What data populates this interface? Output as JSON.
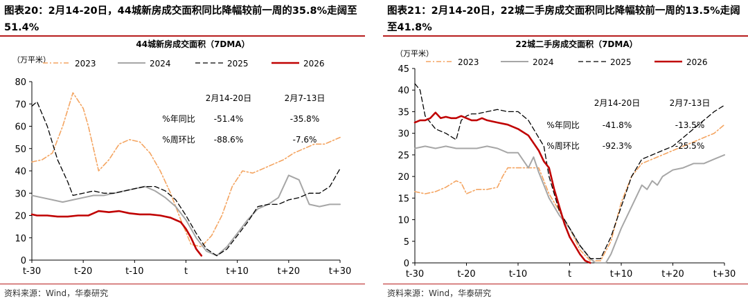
{
  "left": {
    "headline": "图表20：2月14-20日，44城新房成交面积同比降幅较前一周的35.8%走阔至51.4%",
    "source": "资料来源：Wind，华泰研究"
  },
  "right": {
    "headline": "图表21：2月14-20日，22城二手房成交面积同比降幅较前一周的13.5%走阔至41.8%",
    "source": "资料来源：Wind，华泰研究"
  },
  "colors": {
    "c2023": "#f4a460",
    "c2024": "#a6a6a6",
    "c2025": "#000000",
    "c2026": "#c00000",
    "rule": "#b71c1c"
  },
  "chart_data": [
    {
      "type": "line",
      "title": "44城新房成交面积（7DMA）",
      "unit_label": "（万平米）",
      "ylim": [
        0,
        80
      ],
      "yticks": [
        0,
        10,
        20,
        30,
        40,
        50,
        60,
        70,
        80
      ],
      "xlim": [
        -30,
        30
      ],
      "xticks": [
        -30,
        -20,
        -10,
        0,
        10,
        20,
        30
      ],
      "xtick_labels": [
        "t-30",
        "t-20",
        "t-10",
        "t",
        "t+10",
        "t+20",
        "t+30"
      ],
      "legend": [
        "2023",
        "2024",
        "2025",
        "2026"
      ],
      "legend_position": "top",
      "grid": false,
      "series": [
        {
          "name": "2023",
          "x": [
            -30,
            -28,
            -26,
            -24,
            -22,
            -20,
            -19,
            -17,
            -15,
            -13,
            -11,
            -9,
            -7,
            -5,
            -3,
            -1,
            1,
            3,
            5,
            7,
            9,
            11,
            13,
            15,
            17,
            19,
            21,
            23,
            25,
            27,
            29,
            30
          ],
          "y": [
            44,
            45,
            48,
            60,
            75,
            68,
            60,
            40,
            45,
            52,
            54,
            53,
            48,
            40,
            30,
            18,
            7,
            6,
            11,
            20,
            33,
            40,
            39,
            41,
            43,
            45,
            48,
            50,
            52,
            52,
            54,
            55
          ]
        },
        {
          "name": "2024",
          "x": [
            -30,
            -28,
            -26,
            -24,
            -22,
            -20,
            -18,
            -16,
            -14,
            -12,
            -10,
            -8,
            -6,
            -4,
            -2,
            0,
            2,
            4,
            6,
            8,
            10,
            12,
            14,
            16,
            18,
            20,
            22,
            24,
            26,
            28,
            30
          ],
          "y": [
            29,
            28,
            27,
            26,
            27,
            28,
            29,
            29,
            30,
            31,
            32,
            33,
            31,
            28,
            24,
            18,
            10,
            4,
            2,
            6,
            12,
            18,
            23,
            25,
            28,
            38,
            36,
            25,
            24,
            25,
            25
          ]
        },
        {
          "name": "2025",
          "x": [
            -30,
            -29,
            -27,
            -25,
            -23,
            -22,
            -20,
            -18,
            -16,
            -14,
            -12,
            -10,
            -8,
            -6,
            -4,
            -2,
            0,
            2,
            4,
            6,
            8,
            10,
            12,
            14,
            16,
            18,
            20,
            22,
            24,
            26,
            28,
            29,
            30
          ],
          "y": [
            69,
            71,
            60,
            45,
            35,
            29,
            30,
            31,
            30,
            30,
            31,
            32,
            33,
            33,
            31,
            27,
            20,
            12,
            5,
            2,
            5,
            11,
            17,
            24,
            25,
            25,
            27,
            28,
            30,
            30,
            33,
            37,
            41
          ]
        },
        {
          "name": "2026",
          "x": [
            -30,
            -29,
            -27,
            -25,
            -23,
            -21,
            -19,
            -18,
            -17,
            -15,
            -13,
            -11,
            -9,
            -7,
            -5,
            -3,
            -1,
            0,
            1,
            2,
            3
          ],
          "y": [
            20.5,
            20,
            20,
            19.5,
            19.5,
            20,
            20,
            21,
            22,
            21.5,
            22,
            21,
            20.5,
            20.5,
            20,
            19,
            17,
            14,
            10,
            5,
            2
          ]
        }
      ],
      "annotations": {
        "headers": [
          "2月14-20日",
          "2月7-13日"
        ],
        "rows": [
          {
            "label": "%年同比",
            "values": [
              "-51.4%",
              "-35.8%"
            ]
          },
          {
            "label": "%周环比",
            "values": [
              "-88.6%",
              "-7.6%"
            ]
          }
        ]
      }
    },
    {
      "type": "line",
      "title": "22城二手房成交面积（7DMA）",
      "unit_label": "（万平米）",
      "ylim": [
        0,
        45
      ],
      "yticks": [
        0,
        5,
        10,
        15,
        20,
        25,
        30,
        35,
        40,
        45
      ],
      "xlim": [
        -30,
        30
      ],
      "xticks": [
        -30,
        -20,
        -10,
        0,
        10,
        20,
        30
      ],
      "xtick_labels": [
        "t-30",
        "t-20",
        "t-10",
        "t",
        "t+10",
        "t+20",
        "t+30"
      ],
      "legend": [
        "2023",
        "2024",
        "2025",
        "2026"
      ],
      "legend_position": "top",
      "grid": false,
      "series": [
        {
          "name": "2023",
          "x": [
            -30,
            -28,
            -26,
            -24,
            -22,
            -21,
            -20,
            -18,
            -16,
            -14,
            -13,
            -12,
            -10,
            -8,
            -6,
            -5,
            -4,
            -2,
            0,
            2,
            4,
            6,
            8,
            10,
            12,
            14,
            16,
            18,
            20,
            22,
            24,
            26,
            28,
            30
          ],
          "y": [
            16.5,
            16,
            16.5,
            17.5,
            19,
            18.5,
            16,
            17,
            17,
            17.5,
            20,
            22,
            22,
            22,
            22,
            19,
            16,
            12,
            8,
            3,
            0.5,
            0.5,
            5,
            14,
            20,
            23,
            24,
            25,
            26,
            27,
            28,
            29,
            30,
            32
          ]
        },
        {
          "name": "2024",
          "x": [
            -30,
            -28,
            -26,
            -24,
            -22,
            -20,
            -18,
            -16,
            -14,
            -12,
            -10,
            -8,
            -7,
            -6,
            -5,
            -4,
            -2,
            0,
            2,
            4,
            5,
            6,
            7,
            8,
            10,
            12,
            14,
            15,
            16,
            17,
            18,
            20,
            22,
            24,
            26,
            28,
            30
          ],
          "y": [
            26.5,
            27,
            26.5,
            27,
            26.5,
            26.5,
            26.5,
            27,
            26.5,
            25.5,
            25.5,
            22,
            24.5,
            21,
            18,
            15,
            11,
            8,
            4,
            1,
            0,
            0,
            0,
            2,
            8,
            13,
            18,
            17,
            19,
            18,
            20,
            21.5,
            22,
            23,
            23,
            24,
            25
          ]
        },
        {
          "name": "2025",
          "x": [
            -30,
            -29,
            -28,
            -26,
            -24,
            -22,
            -21,
            -20,
            -19,
            -18,
            -16,
            -14,
            -12,
            -10,
            -8,
            -6,
            -5,
            -4,
            -2,
            0,
            2,
            4,
            6,
            8,
            10,
            12,
            14,
            16,
            18,
            20,
            22,
            24,
            26,
            28,
            30
          ],
          "y": [
            41.5,
            40,
            34,
            31,
            30,
            28.5,
            33,
            34,
            34.5,
            34.5,
            35,
            35.5,
            35,
            35,
            33,
            29,
            27,
            20,
            12,
            8,
            4,
            1,
            1,
            6,
            13,
            20,
            24,
            25,
            26,
            27,
            29,
            31,
            33,
            35,
            36.5
          ]
        },
        {
          "name": "2026",
          "x": [
            -30,
            -29,
            -28,
            -27,
            -26,
            -25,
            -24,
            -23,
            -22,
            -21,
            -20,
            -19,
            -18,
            -17,
            -16,
            -14,
            -12,
            -10,
            -8,
            -6,
            -5,
            -4,
            -3,
            -2,
            -1,
            0,
            1,
            2,
            3,
            4
          ],
          "y": [
            32.5,
            33,
            33,
            33.5,
            34.8,
            33.5,
            33.8,
            33.5,
            33.5,
            34,
            33.5,
            33,
            33,
            33.5,
            33,
            32.5,
            32,
            31,
            29.5,
            26,
            23.5,
            22,
            17,
            13,
            9,
            6,
            4,
            2,
            0.5,
            0
          ]
        }
      ],
      "annotations": {
        "headers": [
          "2月14-20日",
          "2月7-13日"
        ],
        "rows": [
          {
            "label": "%年同比",
            "values": [
              "-41.8%",
              "-13.5%"
            ]
          },
          {
            "label": "%周环比",
            "values": [
              "-92.3%",
              "-25.5%"
            ]
          }
        ]
      }
    }
  ]
}
